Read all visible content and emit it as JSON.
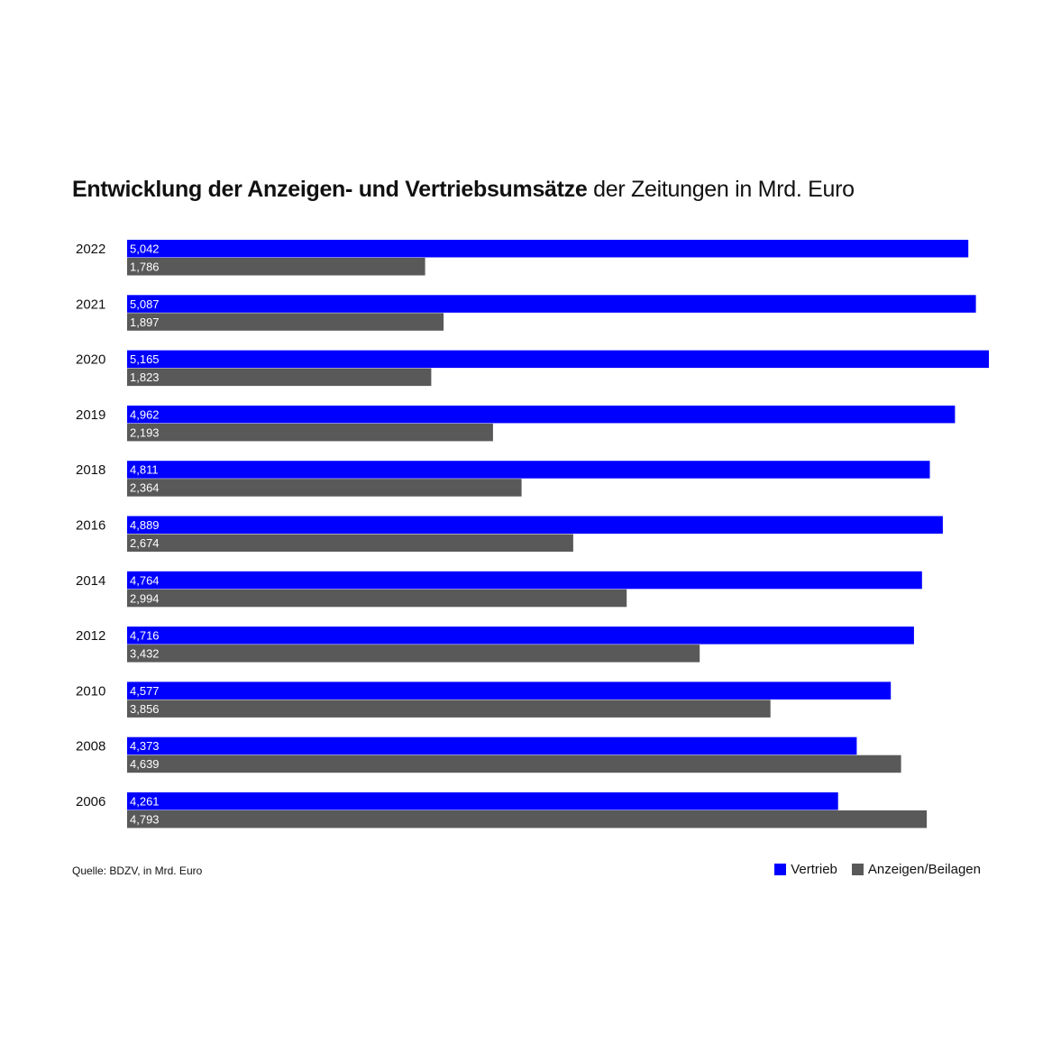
{
  "title": {
    "bold": "Entwicklung der Anzeigen- und Vertriebsumsätze",
    "rest": " der Zeitungen in Mrd. Euro"
  },
  "source": "Quelle: BDZV, in Mrd. Euro",
  "legend": [
    {
      "label": "Vertrieb",
      "color": "#0000ff"
    },
    {
      "label": "Anzeigen/Beilagen",
      "color": "#595959"
    }
  ],
  "chart_data": {
    "type": "bar",
    "orientation": "horizontal",
    "title": "Entwicklung der Anzeigen- und Vertriebsumsätze der Zeitungen in Mrd. Euro",
    "categories": [
      "2022",
      "2021",
      "2020",
      "2019",
      "2018",
      "2016",
      "2014",
      "2012",
      "2010",
      "2008",
      "2006"
    ],
    "series": [
      {
        "name": "Vertrieb",
        "color": "#0000ff",
        "values": [
          5.042,
          5.087,
          5.165,
          4.962,
          4.811,
          4.889,
          4.764,
          4.716,
          4.577,
          4.373,
          4.261
        ],
        "labels": [
          "5,042",
          "5,087",
          "5,165",
          "4,962",
          "4,811",
          "4,889",
          "4,764",
          "4,716",
          "4,577",
          "4,373",
          "4,261"
        ]
      },
      {
        "name": "Anzeigen/Beilagen",
        "color": "#595959",
        "values": [
          1.786,
          1.897,
          1.823,
          2.193,
          2.364,
          2.674,
          2.994,
          3.432,
          3.856,
          4.639,
          4.793
        ],
        "labels": [
          "1,786",
          "1,897",
          "1,823",
          "2,193",
          "2,364",
          "2,674",
          "2,994",
          "3,432",
          "3,856",
          "4,639",
          "4,793"
        ]
      }
    ],
    "xlim": [
      0,
      5.165
    ],
    "grid": false,
    "legend_position": "bottom-right"
  }
}
